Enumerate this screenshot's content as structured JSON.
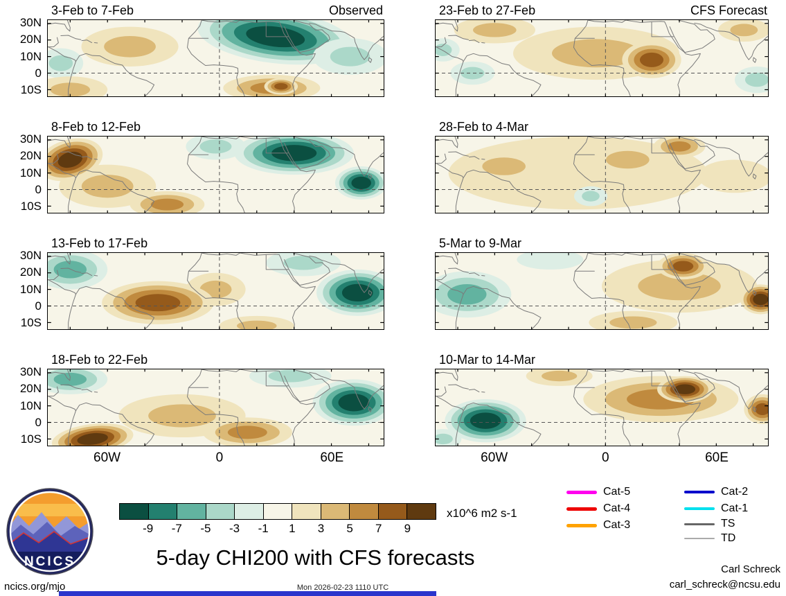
{
  "axes": {
    "y_ticks": [
      "30N",
      "20N",
      "10N",
      "0",
      "10S"
    ],
    "x_ticks": [
      "60W",
      "0",
      "60E"
    ]
  },
  "colorbar": {
    "ticks": [
      "-9",
      "-7",
      "-5",
      "-3",
      "-1",
      "1",
      "3",
      "5",
      "7",
      "9"
    ],
    "colors": [
      "#0b4f41",
      "#23806f",
      "#62b3a0",
      "#abd8c9",
      "#ddeee5",
      "#f7f5e8",
      "#f0e4bd",
      "#dbb976",
      "#c08a3e",
      "#955a1b",
      "#5f3a10"
    ],
    "units": "x10^6 m2 s-1"
  },
  "legend": {
    "items": [
      {
        "label": "Cat-5",
        "color": "#ff00ee",
        "weight": 5
      },
      {
        "label": "Cat-4",
        "color": "#ee0000",
        "weight": 5
      },
      {
        "label": "Cat-3",
        "color": "#ffa200",
        "weight": 5
      },
      {
        "label": "Cat-2",
        "color": "#0008cc",
        "weight": 4
      },
      {
        "label": "Cat-1",
        "color": "#00e0ee",
        "weight": 4
      },
      {
        "label": "TS",
        "color": "#666666",
        "weight": 3
      },
      {
        "label": "TD",
        "color": "#aaaaaa",
        "weight": 1.5
      }
    ]
  },
  "logo": {
    "text": "NCICS"
  },
  "title": "5-day CHI200 with CFS forecasts",
  "footer": {
    "site": "ncics.org/mjo",
    "timestamp": "Mon 2026-02-23 1110 UTC",
    "author": "Carl Schreck",
    "email": "carl_schreck@ncsu.edu"
  },
  "chart_data": {
    "type": "heatmap",
    "variable": "CHI200 (200 hPa velocity potential) anomaly, 5-day means, Observed and CFS Forecast",
    "units": "x10^6 m2 s-1",
    "levels": [
      -9,
      -7,
      -5,
      -3,
      -1,
      1,
      3,
      5,
      7,
      9
    ],
    "lon_range": [
      -92,
      88
    ],
    "lat_range": [
      -14,
      32
    ],
    "grid": false,
    "anomaly_format": [
      "center_lon",
      "center_lat",
      "radius_lon_deg",
      "radius_lat_deg",
      "rotation_deg",
      "peak_value"
    ],
    "panels": [
      {
        "title": "3-Feb to 7-Feb",
        "tag": "Observed",
        "anomalies": [
          [
            30,
            22,
            42,
            16,
            -8,
            -9
          ],
          [
            70,
            10,
            20,
            11,
            0,
            -3
          ],
          [
            -85,
            6,
            12,
            9,
            0,
            -3
          ],
          [
            -48,
            16,
            26,
            12,
            0,
            3
          ],
          [
            -80,
            -10,
            20,
            8,
            0,
            3
          ],
          [
            28,
            -9,
            26,
            8,
            0,
            5
          ],
          [
            33,
            -8,
            9,
            5,
            0,
            7
          ]
        ]
      },
      {
        "title": "8-Feb to 12-Feb",
        "tag": "",
        "anomalies": [
          [
            -60,
            2,
            26,
            13,
            0,
            3
          ],
          [
            -28,
            -9,
            20,
            8,
            0,
            5
          ],
          [
            -80,
            18,
            18,
            12,
            20,
            9
          ],
          [
            40,
            22,
            32,
            13,
            0,
            -9
          ],
          [
            76,
            4,
            14,
            10,
            0,
            -9
          ],
          [
            -2,
            26,
            16,
            8,
            0,
            -3
          ]
        ]
      },
      {
        "title": "13-Feb to 17-Feb",
        "tag": "",
        "anomalies": [
          [
            -2,
            10,
            16,
            10,
            0,
            3
          ],
          [
            -33,
            2,
            30,
            13,
            0,
            7
          ],
          [
            -80,
            22,
            20,
            12,
            0,
            -5
          ],
          [
            74,
            8,
            22,
            14,
            0,
            -9
          ],
          [
            45,
            26,
            20,
            8,
            0,
            -3
          ],
          [
            20,
            -12,
            20,
            6,
            0,
            3
          ]
        ]
      },
      {
        "title": "18-Feb to 22-Feb",
        "tag": "",
        "anomalies": [
          [
            -80,
            26,
            20,
            9,
            0,
            -5
          ],
          [
            -20,
            4,
            34,
            13,
            0,
            3
          ],
          [
            15,
            -6,
            24,
            9,
            0,
            5
          ],
          [
            -68,
            -10,
            22,
            9,
            8,
            9
          ],
          [
            72,
            12,
            22,
            14,
            0,
            -9
          ],
          [
            38,
            28,
            22,
            7,
            0,
            -3
          ]
        ]
      },
      {
        "title": "23-Feb to 27-Feb",
        "tag": "CFS Forecast",
        "anomalies": [
          [
            -5,
            12,
            45,
            16,
            0,
            3
          ],
          [
            -60,
            26,
            22,
            8,
            0,
            3
          ],
          [
            75,
            26,
            14,
            7,
            0,
            3
          ],
          [
            25,
            8,
            16,
            11,
            0,
            7
          ],
          [
            -88,
            14,
            9,
            7,
            0,
            -3
          ],
          [
            -72,
            0,
            12,
            7,
            0,
            -3
          ],
          [
            82,
            -4,
            12,
            8,
            0,
            -3
          ]
        ]
      },
      {
        "title": "28-Feb to 4-Mar",
        "tag": "",
        "anomalies": [
          [
            -15,
            10,
            70,
            22,
            0,
            1
          ],
          [
            -55,
            14,
            22,
            10,
            0,
            3
          ],
          [
            12,
            18,
            22,
            10,
            0,
            3
          ],
          [
            40,
            26,
            14,
            7,
            0,
            5
          ],
          [
            70,
            8,
            20,
            10,
            0,
            1
          ],
          [
            -8,
            -4,
            9,
            6,
            0,
            -3
          ]
        ]
      },
      {
        "title": "5-Mar to 9-Mar",
        "tag": "",
        "anomalies": [
          [
            40,
            12,
            42,
            16,
            0,
            3
          ],
          [
            42,
            24,
            14,
            8,
            0,
            7
          ],
          [
            84,
            4,
            11,
            9,
            0,
            9
          ],
          [
            15,
            -10,
            24,
            7,
            0,
            3
          ],
          [
            -75,
            7,
            24,
            14,
            0,
            -5
          ],
          [
            -30,
            28,
            18,
            6,
            0,
            -1
          ]
        ]
      },
      {
        "title": "10-Mar to 14-Mar",
        "tag": "",
        "anomalies": [
          [
            30,
            14,
            42,
            14,
            0,
            5
          ],
          [
            43,
            20,
            15,
            8,
            0,
            9
          ],
          [
            85,
            8,
            10,
            9,
            0,
            7
          ],
          [
            -25,
            28,
            18,
            6,
            0,
            3
          ],
          [
            -65,
            1,
            22,
            13,
            0,
            -9
          ],
          [
            -88,
            -10,
            10,
            6,
            0,
            -3
          ]
        ]
      }
    ]
  }
}
